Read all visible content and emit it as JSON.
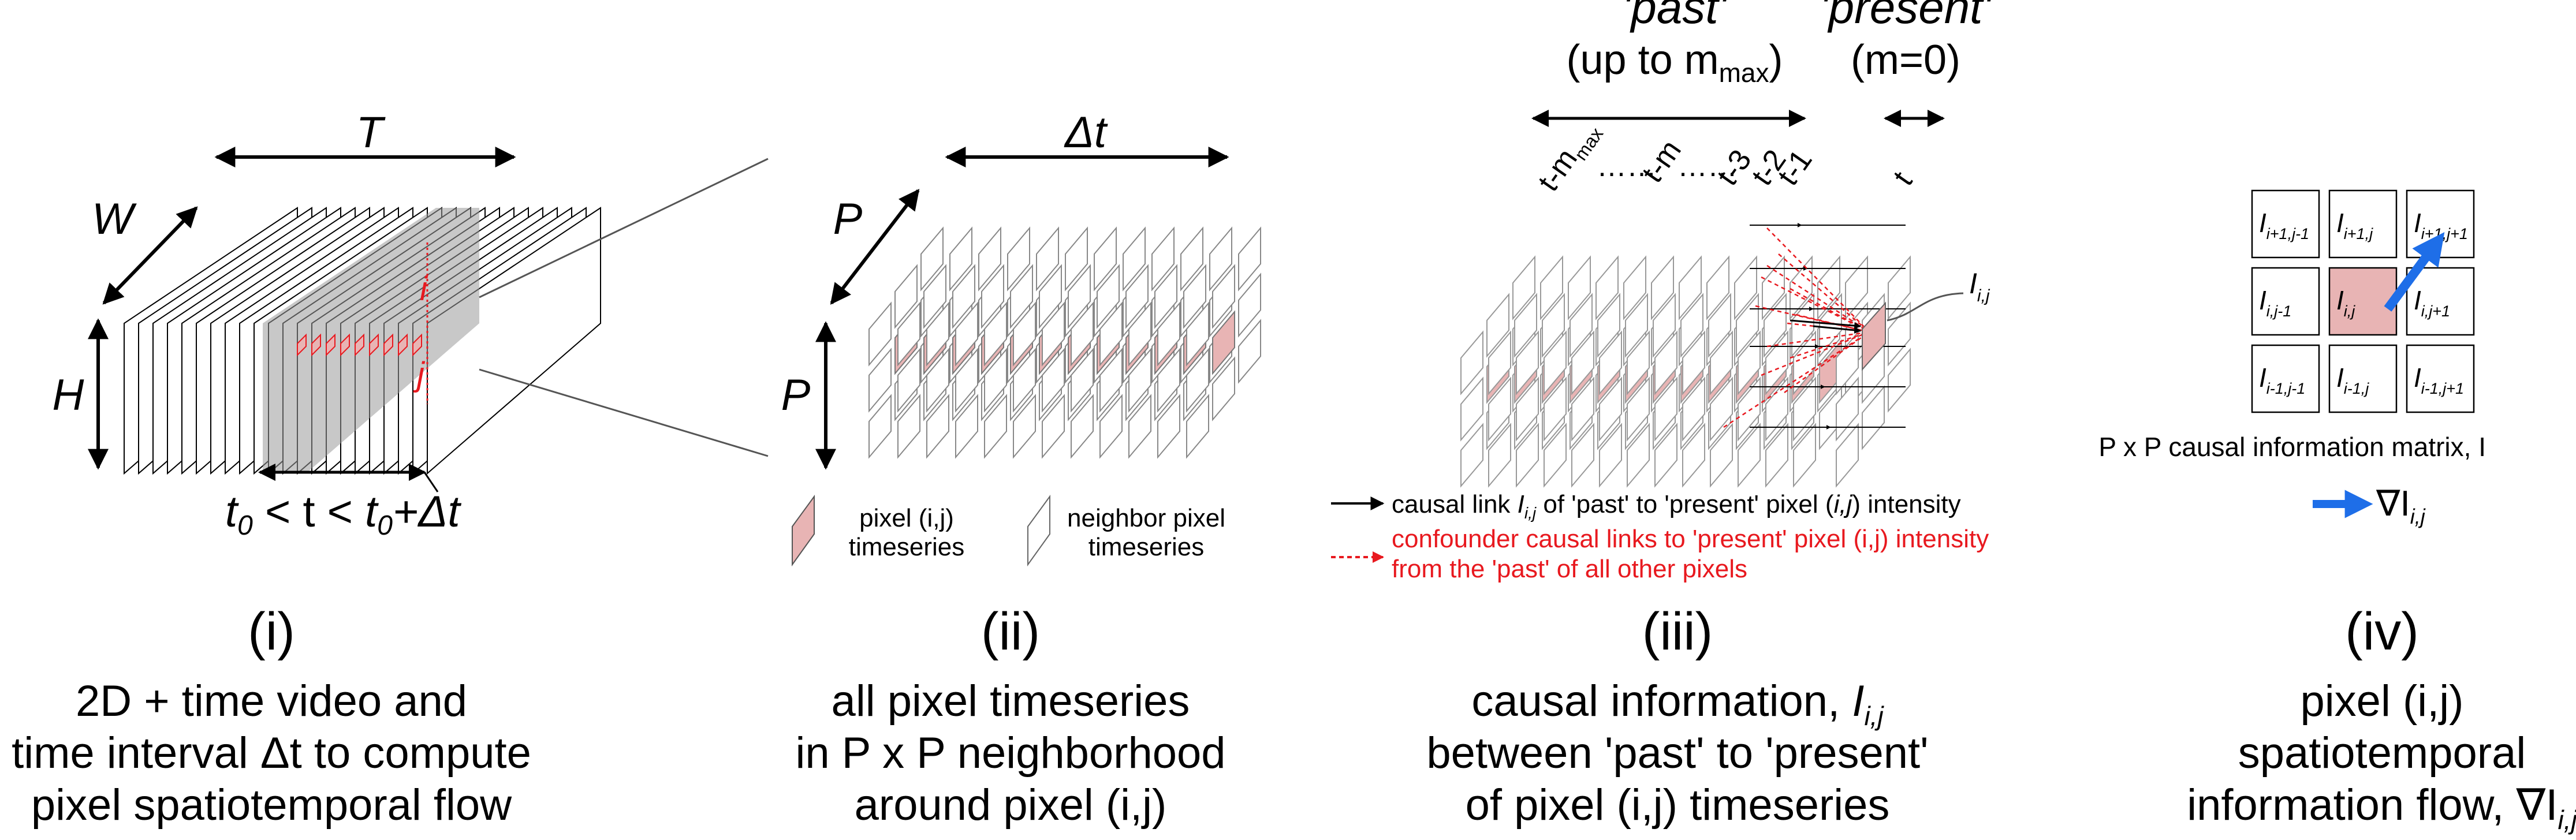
{
  "panel_i": {
    "dim_T": "T",
    "dim_W": "W",
    "dim_H": "H",
    "label_i": "i",
    "label_j": "j",
    "time_range": {
      "t0": "t",
      "sub0": "0",
      "mid": " < t < ",
      "t1": "t",
      "sub1": "0",
      "end": "+Δt"
    },
    "numeral": "(i)",
    "caption": [
      "2D + time video and",
      "time interval Δt to compute",
      "pixel spatiotemporal flow"
    ]
  },
  "panel_ii": {
    "dim_dt": "Δt",
    "dim_P_diag": "P",
    "dim_P_vert": "P",
    "legend_pixel": [
      "pixel (i,j)",
      "timeseries"
    ],
    "legend_neighbor": [
      "neighbor pixel",
      "timeseries"
    ],
    "numeral": "(ii)",
    "caption": [
      "all pixel timeseries",
      "in P x P neighborhood",
      "around pixel (i,j)"
    ]
  },
  "panel_iii": {
    "past_label": "'past'",
    "past_sub": "(up to m",
    "past_sub_idx": "max",
    "present_label": "'present'",
    "present_sub": "(m=0)",
    "time_labels": {
      "t_mmax": "t-m",
      "t_mmax_sub": "max",
      "dots": "……",
      "t_m": "t-m",
      "t3": "t-3",
      "t2": "t-2",
      "t1": "t-1",
      "t": "t"
    },
    "pixel_label": "I",
    "pixel_label_sub": "i,j",
    "legend_black": "causal link I  of 'past' to 'present' pixel (i,j) intensity",
    "legend_black_sub": "i,j",
    "legend_red_line1": "confounder causal links to 'present' pixel (i,j) intensity",
    "legend_red_line2": "from the 'past' of all other pixels",
    "numeral": "(iii)",
    "caption_line1": "causal information, ",
    "caption_line1_sym": "I",
    "caption_line1_sub": "i,j",
    "caption_line2": "between 'past' to 'present'",
    "caption_line3": "of pixel (i,j) timeseries"
  },
  "panel_iv": {
    "matrix": [
      [
        "i+1,j-1",
        "i+1,j",
        "i+1,j+1"
      ],
      [
        "i,j-1",
        "i,j",
        "i,j+1"
      ],
      [
        "i-1,j-1",
        "i-1,j",
        "i-1,j+1"
      ]
    ],
    "cell_symbol": "I",
    "matrix_label": "P x P causal information matrix, I",
    "gradient_label": "∇I",
    "gradient_sub": "i,j",
    "numeral": "(iv)",
    "caption": [
      "pixel (i,j)",
      "spatiotemporal",
      "information flow, ∇I"
    ],
    "caption_sub": "i,j"
  },
  "colors": {
    "pixel_fill": "#e8b4b4",
    "red": "#e8191f",
    "blue": "#1e6ee8",
    "frame_gray": "#cfcfcf"
  }
}
